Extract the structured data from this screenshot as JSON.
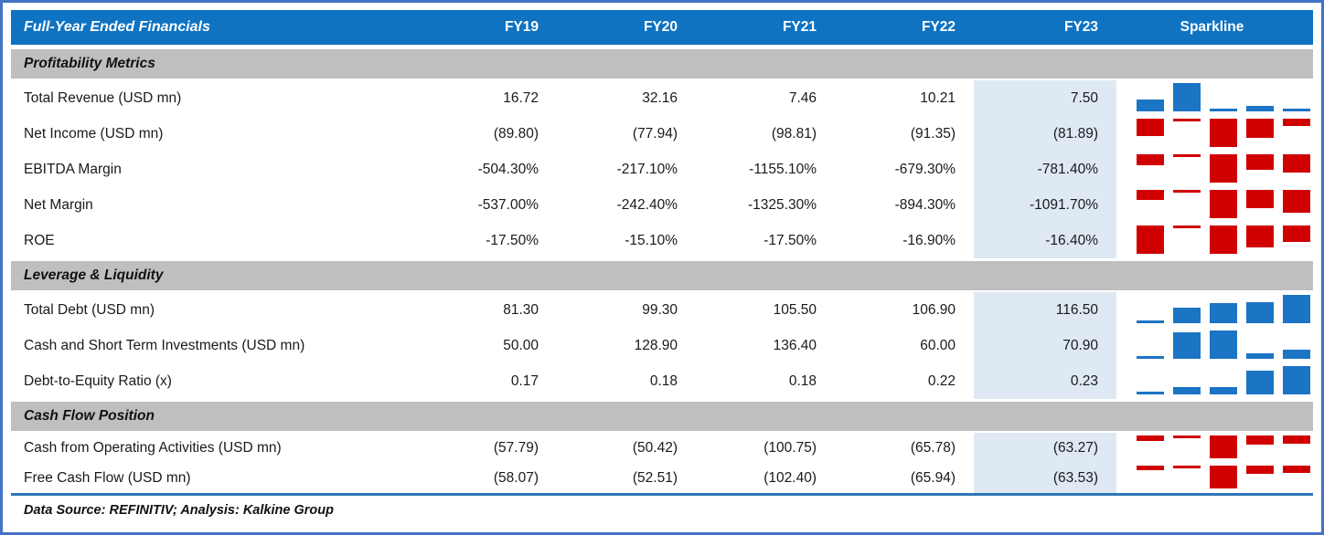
{
  "colors": {
    "frame_blue": "#4472C4",
    "header_blue": "#0F73C2",
    "section_gray": "#BFBFBF",
    "fy23_highlight": "#DEE9F4",
    "separator_blue": "#2E75B6",
    "spark_blue": "#1B74C4",
    "spark_red": "#D00000",
    "text_dark": "#1A1A1A"
  },
  "header": {
    "title": "Full-Year Ended Financials",
    "columns": [
      "FY19",
      "FY20",
      "FY21",
      "FY22",
      "FY23"
    ],
    "sparkline": "Sparkline"
  },
  "footer": {
    "source": "Data Source: REFINITIV; Analysis: Kalkine Group"
  },
  "chart_data": {
    "type": "table",
    "title": "Full-Year Ended Financials",
    "categories": [
      "FY19",
      "FY20",
      "FY21",
      "FY22",
      "FY23"
    ],
    "highlighted_column": "FY23",
    "legend_position": "none",
    "sparkline": {
      "type": "column",
      "positive_color": "#1B74C4",
      "negative_color": "#D00000"
    },
    "sections": [
      {
        "label": "Profitability Metrics",
        "rows": [
          {
            "label": "Total Revenue (USD mn)",
            "display": [
              "16.72",
              "32.16",
              "7.46",
              "10.21",
              "7.50"
            ],
            "values": [
              16.72,
              32.16,
              7.46,
              10.21,
              7.5
            ]
          },
          {
            "label": "Net Income (USD mn)",
            "display": [
              "(89.80)",
              "(77.94)",
              "(98.81)",
              "(91.35)",
              "(81.89)"
            ],
            "values": [
              -89.8,
              -77.94,
              -98.81,
              -91.35,
              -81.89
            ]
          },
          {
            "label": "EBITDA Margin",
            "display": [
              "-504.30%",
              "-217.10%",
              "-1155.10%",
              "-679.30%",
              "-781.40%"
            ],
            "values": [
              -504.3,
              -217.1,
              -1155.1,
              -679.3,
              -781.4
            ]
          },
          {
            "label": "Net Margin",
            "display": [
              "-537.00%",
              "-242.40%",
              "-1325.30%",
              "-894.30%",
              "-1091.70%"
            ],
            "values": [
              -537.0,
              -242.4,
              -1325.3,
              -894.3,
              -1091.7
            ]
          },
          {
            "label": "ROE",
            "display": [
              "-17.50%",
              "-15.10%",
              "-17.50%",
              "-16.90%",
              "-16.40%"
            ],
            "values": [
              -17.5,
              -15.1,
              -17.5,
              -16.9,
              -16.4
            ]
          }
        ]
      },
      {
        "label": "Leverage & Liquidity",
        "rows": [
          {
            "label": "Total Debt (USD mn)",
            "display": [
              "81.30",
              "99.30",
              "105.50",
              "106.90",
              "116.50"
            ],
            "values": [
              81.3,
              99.3,
              105.5,
              106.9,
              116.5
            ]
          },
          {
            "label": "Cash and Short Term Investments (USD mn)",
            "display": [
              "50.00",
              "128.90",
              "136.40",
              "60.00",
              "70.90"
            ],
            "values": [
              50.0,
              128.9,
              136.4,
              60.0,
              70.9
            ]
          },
          {
            "label": "Debt-to-Equity Ratio (x)",
            "display": [
              "0.17",
              "0.18",
              "0.18",
              "0.22",
              "0.23"
            ],
            "values": [
              0.17,
              0.18,
              0.18,
              0.22,
              0.23
            ]
          }
        ]
      },
      {
        "label": "Cash Flow Position",
        "rows": [
          {
            "label": "Cash from Operating Activities (USD mn)",
            "display": [
              "(57.79)",
              "(50.42)",
              "(100.75)",
              "(65.78)",
              "(63.27)"
            ],
            "values": [
              -57.79,
              -50.42,
              -100.75,
              -65.78,
              -63.27
            ]
          },
          {
            "label": "Free Cash Flow (USD mn)",
            "display": [
              "(58.07)",
              "(52.51)",
              "(102.40)",
              "(65.94)",
              "(63.53)"
            ],
            "values": [
              -58.07,
              -52.51,
              -102.4,
              -65.94,
              -63.53
            ]
          }
        ]
      }
    ],
    "source": "Data Source: REFINITIV; Analysis: Kalkine Group"
  }
}
